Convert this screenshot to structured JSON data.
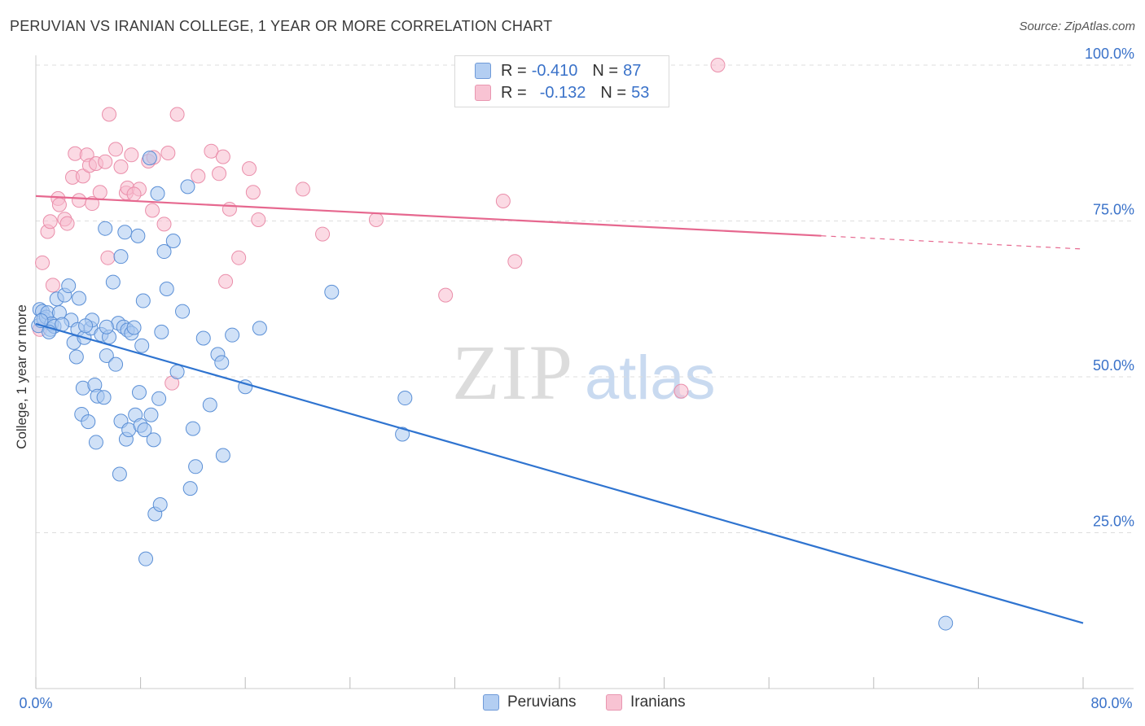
{
  "title": "PERUVIAN VS IRANIAN COLLEGE, 1 YEAR OR MORE CORRELATION CHART",
  "source": "Source: ZipAtlas.com",
  "watermark": {
    "zip": "ZIP",
    "atlas": "atlas"
  },
  "legend": {
    "r_label": "R =",
    "n_label": "N =",
    "rows": [
      {
        "r": "-0.410",
        "n": "87"
      },
      {
        "r": "-0.132",
        "n": "53"
      }
    ]
  },
  "colors": {
    "blue_fill": "#a9c8f0",
    "blue_stroke": "#5a8fd6",
    "blue_line": "#2f74d0",
    "pink_fill": "#f7bccd",
    "pink_stroke": "#ea8eaa",
    "pink_line": "#e6688f",
    "tick_label": "#3a72c9",
    "grid": "#dddddd"
  },
  "chart_data": {
    "type": "scatter",
    "title": "PERUVIAN VS IRANIAN COLLEGE, 1 YEAR OR MORE CORRELATION CHART",
    "xlabel": "",
    "ylabel": "College, 1 year or more",
    "xlim": [
      0,
      80
    ],
    "ylim": [
      0,
      105
    ],
    "x_tick_labels": [
      "0.0%",
      "80.0%"
    ],
    "y_ticks": [
      {
        "value": 25,
        "label": "25.0%"
      },
      {
        "value": 50,
        "label": "50.0%"
      },
      {
        "value": 75,
        "label": "75.0%"
      },
      {
        "value": 100,
        "label": "100.0%"
      }
    ],
    "grid": "horizontal dashed",
    "legend_position": "bottom",
    "series": [
      {
        "name": "Peruvians",
        "color": "#a9c8f0",
        "trend": {
          "x": [
            0,
            80
          ],
          "y": [
            58.5,
            10.5
          ]
        },
        "points": [
          [
            0.2,
            58.2
          ],
          [
            0.3,
            60.8
          ],
          [
            0.5,
            60.5
          ],
          [
            0.6,
            59.3
          ],
          [
            0.8,
            59.6
          ],
          [
            0.9,
            60.3
          ],
          [
            1.1,
            57.6
          ],
          [
            1.2,
            58.5
          ],
          [
            1.4,
            58.1
          ],
          [
            1.6,
            62.5
          ],
          [
            1.8,
            60.3
          ],
          [
            2.2,
            63.1
          ],
          [
            2.5,
            64.6
          ],
          [
            2.7,
            59.1
          ],
          [
            2.9,
            55.5
          ],
          [
            3.1,
            53.2
          ],
          [
            3.2,
            57.6
          ],
          [
            3.3,
            62.6
          ],
          [
            3.5,
            44.0
          ],
          [
            3.6,
            48.2
          ],
          [
            3.7,
            56.3
          ],
          [
            4.0,
            42.8
          ],
          [
            4.2,
            57.8
          ],
          [
            4.3,
            59.1
          ],
          [
            4.5,
            48.7
          ],
          [
            4.6,
            39.5
          ],
          [
            4.7,
            46.9
          ],
          [
            5.0,
            56.8
          ],
          [
            5.2,
            46.7
          ],
          [
            5.3,
            73.8
          ],
          [
            5.4,
            53.4
          ],
          [
            5.6,
            56.4
          ],
          [
            5.9,
            65.2
          ],
          [
            6.1,
            52.0
          ],
          [
            6.3,
            58.6
          ],
          [
            6.4,
            34.4
          ],
          [
            6.5,
            42.9
          ],
          [
            6.7,
            58.0
          ],
          [
            6.8,
            73.2
          ],
          [
            6.9,
            40.0
          ],
          [
            7.0,
            57.5
          ],
          [
            7.1,
            41.5
          ],
          [
            7.3,
            57.0
          ],
          [
            7.5,
            57.9
          ],
          [
            7.6,
            43.9
          ],
          [
            7.8,
            72.6
          ],
          [
            7.9,
            47.5
          ],
          [
            8.0,
            42.2
          ],
          [
            8.1,
            55.0
          ],
          [
            8.2,
            62.2
          ],
          [
            8.3,
            41.5
          ],
          [
            8.4,
            20.8
          ],
          [
            8.7,
            85.1
          ],
          [
            8.8,
            43.9
          ],
          [
            9.0,
            39.9
          ],
          [
            9.1,
            28.0
          ],
          [
            9.3,
            79.4
          ],
          [
            9.4,
            46.5
          ],
          [
            9.5,
            29.5
          ],
          [
            9.8,
            70.1
          ],
          [
            10.0,
            64.1
          ],
          [
            10.5,
            71.8
          ],
          [
            10.8,
            50.8
          ],
          [
            11.2,
            60.5
          ],
          [
            11.6,
            80.5
          ],
          [
            11.8,
            32.1
          ],
          [
            12.0,
            41.7
          ],
          [
            12.2,
            35.6
          ],
          [
            13.3,
            45.5
          ],
          [
            13.9,
            53.6
          ],
          [
            14.2,
            52.3
          ],
          [
            14.3,
            37.4
          ],
          [
            15.0,
            56.7
          ],
          [
            16.0,
            48.4
          ],
          [
            17.1,
            57.8
          ],
          [
            22.6,
            63.6
          ],
          [
            28.2,
            46.6
          ],
          [
            28.0,
            40.8
          ],
          [
            69.5,
            10.5
          ],
          [
            6.5,
            69.3
          ],
          [
            0.4,
            59.0
          ],
          [
            1.0,
            57.2
          ],
          [
            2.0,
            58.4
          ],
          [
            3.8,
            58.2
          ],
          [
            9.6,
            57.2
          ],
          [
            5.4,
            58.0
          ],
          [
            12.8,
            56.2
          ]
        ]
      },
      {
        "name": "Iranians",
        "color": "#f7bccd",
        "trend": {
          "x": [
            0,
            80
          ],
          "y": [
            79.0,
            70.5
          ]
        },
        "points": [
          [
            0.3,
            57.6
          ],
          [
            0.5,
            68.3
          ],
          [
            0.9,
            73.3
          ],
          [
            1.1,
            74.9
          ],
          [
            1.3,
            64.7
          ],
          [
            1.7,
            78.6
          ],
          [
            1.8,
            77.6
          ],
          [
            2.2,
            75.3
          ],
          [
            2.4,
            74.6
          ],
          [
            2.8,
            82.0
          ],
          [
            3.0,
            85.8
          ],
          [
            3.3,
            78.3
          ],
          [
            3.6,
            82.2
          ],
          [
            3.9,
            85.6
          ],
          [
            4.1,
            83.9
          ],
          [
            4.3,
            77.8
          ],
          [
            4.6,
            84.2
          ],
          [
            4.9,
            79.6
          ],
          [
            5.3,
            84.5
          ],
          [
            5.5,
            69.1
          ],
          [
            5.6,
            92.1
          ],
          [
            6.1,
            86.5
          ],
          [
            6.5,
            83.7
          ],
          [
            6.9,
            79.5
          ],
          [
            7.0,
            80.3
          ],
          [
            7.3,
            85.6
          ],
          [
            7.9,
            80.1
          ],
          [
            8.6,
            84.6
          ],
          [
            8.9,
            76.7
          ],
          [
            9.8,
            74.5
          ],
          [
            10.1,
            85.9
          ],
          [
            10.4,
            49.0
          ],
          [
            10.8,
            92.1
          ],
          [
            12.4,
            82.2
          ],
          [
            13.4,
            86.2
          ],
          [
            14.0,
            82.6
          ],
          [
            14.3,
            85.3
          ],
          [
            14.5,
            65.3
          ],
          [
            14.8,
            76.9
          ],
          [
            15.5,
            69.1
          ],
          [
            16.3,
            83.4
          ],
          [
            16.6,
            79.6
          ],
          [
            17.0,
            75.2
          ],
          [
            20.4,
            80.1
          ],
          [
            21.9,
            72.9
          ],
          [
            26.0,
            75.2
          ],
          [
            31.3,
            63.1
          ],
          [
            35.7,
            78.2
          ],
          [
            36.6,
            68.5
          ],
          [
            49.3,
            47.7
          ],
          [
            52.1,
            100.0
          ],
          [
            9.0,
            85.2
          ],
          [
            7.5,
            79.3
          ]
        ]
      }
    ]
  }
}
